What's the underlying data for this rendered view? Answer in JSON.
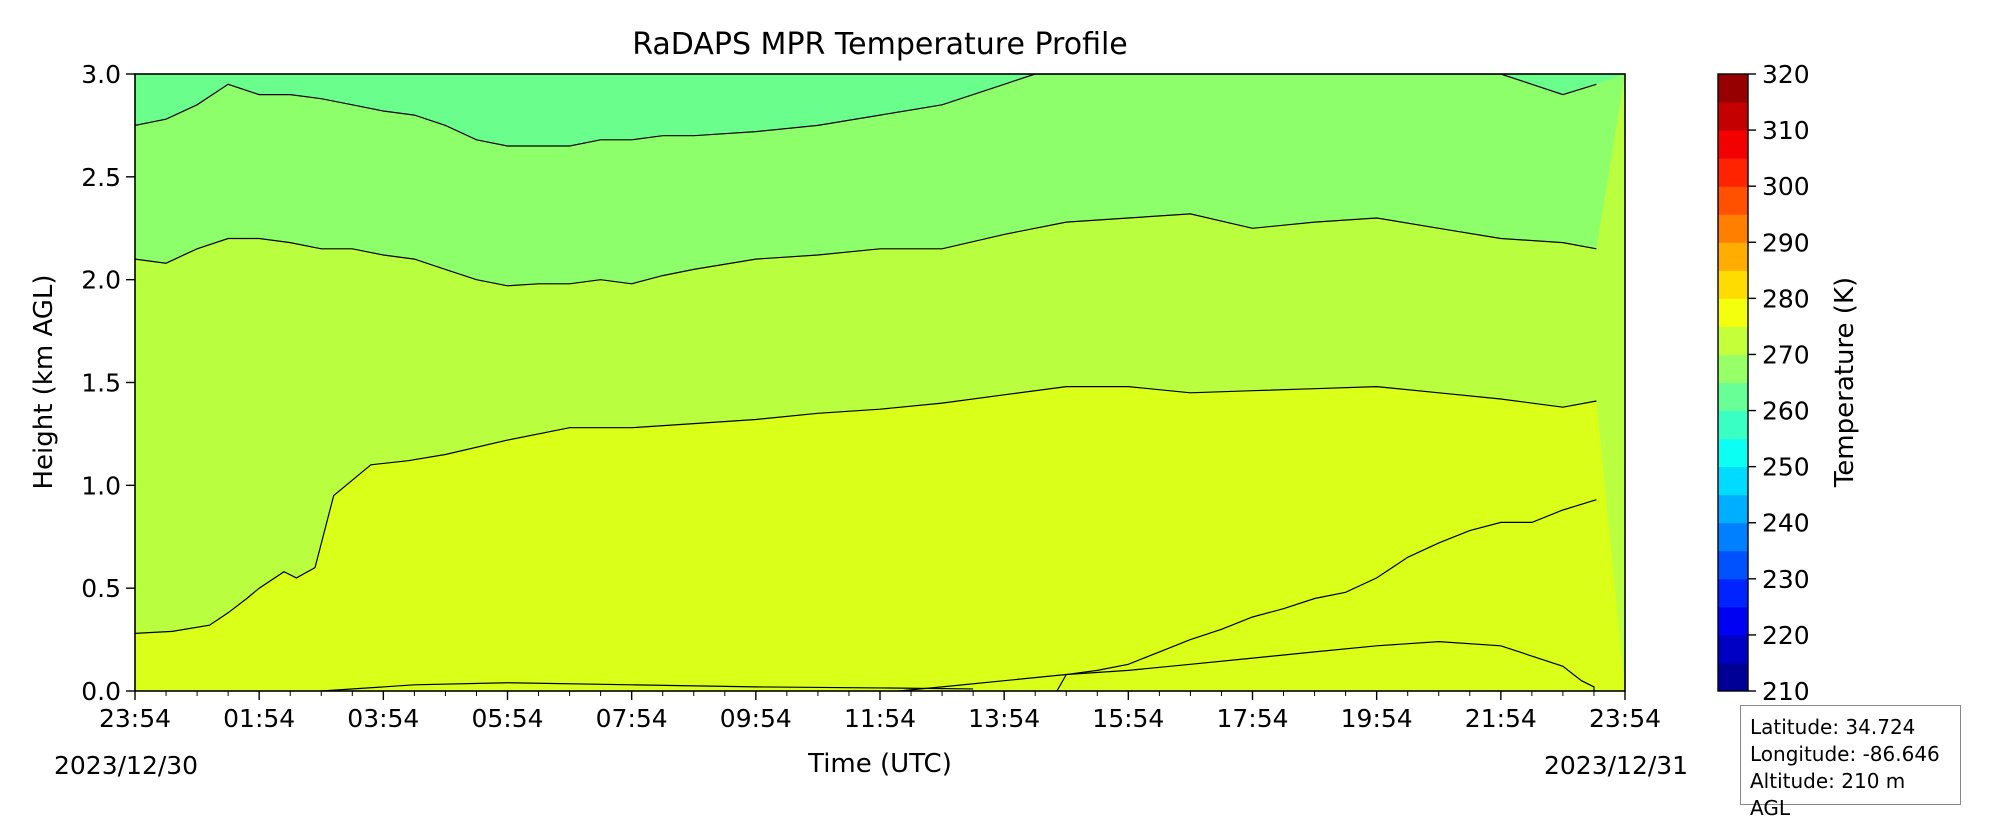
{
  "chart_data": {
    "type": "contourf",
    "title": "RaDAPS MPR Temperature Profile",
    "xlabel": "Time (UTC)",
    "ylabel": "Height (km AGL)",
    "x_ticks": [
      "23:54",
      "01:54",
      "03:54",
      "05:54",
      "07:54",
      "09:54",
      "11:54",
      "13:54",
      "15:54",
      "17:54",
      "19:54",
      "21:54",
      "23:54"
    ],
    "x_start_date": "2023/12/30",
    "x_end_date": "2023/12/31",
    "ylim": [
      0,
      3.0
    ],
    "y_ticks": [
      "0.0",
      "0.5",
      "1.0",
      "1.5",
      "2.0",
      "2.5",
      "3.0"
    ],
    "colorbar": {
      "label": "Temperature (K)",
      "range": [
        210,
        320
      ],
      "step": 5,
      "ticks": [
        "210",
        "220",
        "230",
        "240",
        "250",
        "260",
        "270",
        "280",
        "290",
        "300",
        "310",
        "320"
      ]
    },
    "contour_levels_K": [
      260,
      265,
      270,
      275,
      280,
      285
    ],
    "layers": [
      {
        "level": 285,
        "color": "#ffb000",
        "points": [
          [
            12.3,
            0
          ],
          [
            13.0,
            0.02
          ],
          [
            14.0,
            0.05
          ],
          [
            15.0,
            0.08
          ],
          [
            16.0,
            0.1
          ],
          [
            17.0,
            0.13
          ],
          [
            18.0,
            0.16
          ],
          [
            19.0,
            0.19
          ],
          [
            20.0,
            0.22
          ],
          [
            21.0,
            0.24
          ],
          [
            22.0,
            0.22
          ],
          [
            23.0,
            0.12
          ],
          [
            23.3,
            0.05
          ],
          [
            23.5,
            0.02
          ],
          [
            23.5,
            0
          ],
          [
            23.54,
            0
          ]
        ]
      },
      {
        "level": 280,
        "color": "#ffe100",
        "points": [
          [
            14.85,
            0
          ],
          [
            15.0,
            0.08
          ],
          [
            15.5,
            0.1
          ],
          [
            16.0,
            0.13
          ],
          [
            16.5,
            0.19
          ],
          [
            17.0,
            0.25
          ],
          [
            17.5,
            0.3
          ],
          [
            18.0,
            0.36
          ],
          [
            18.5,
            0.4
          ],
          [
            19.0,
            0.45
          ],
          [
            19.5,
            0.48
          ],
          [
            20.0,
            0.55
          ],
          [
            20.5,
            0.65
          ],
          [
            21.0,
            0.72
          ],
          [
            21.5,
            0.78
          ],
          [
            22.0,
            0.82
          ],
          [
            22.5,
            0.82
          ],
          [
            23.0,
            0.88
          ],
          [
            23.54,
            0.93
          ]
        ]
      },
      {
        "level": 275,
        "color": "#daff18",
        "points": [
          [
            0,
            0.28
          ],
          [
            0.6,
            0.29
          ],
          [
            1.2,
            0.32
          ],
          [
            1.5,
            0.38
          ],
          [
            1.8,
            0.45
          ],
          [
            2.0,
            0.5
          ],
          [
            2.4,
            0.58
          ],
          [
            2.6,
            0.55
          ],
          [
            2.9,
            0.6
          ],
          [
            3.2,
            0.95
          ],
          [
            3.4,
            1.0
          ],
          [
            3.8,
            1.1
          ],
          [
            4.4,
            1.12
          ],
          [
            5.0,
            1.15
          ],
          [
            6.0,
            1.22
          ],
          [
            7.0,
            1.28
          ],
          [
            8.0,
            1.28
          ],
          [
            9.0,
            1.3
          ],
          [
            10.0,
            1.32
          ],
          [
            11.0,
            1.35
          ],
          [
            12.0,
            1.37
          ],
          [
            13.0,
            1.4
          ],
          [
            14.0,
            1.44
          ],
          [
            15.0,
            1.48
          ],
          [
            16.0,
            1.48
          ],
          [
            17.0,
            1.45
          ],
          [
            18.0,
            1.46
          ],
          [
            19.0,
            1.47
          ],
          [
            20.0,
            1.48
          ],
          [
            21.0,
            1.45
          ],
          [
            22.0,
            1.42
          ],
          [
            23.0,
            1.38
          ],
          [
            23.54,
            1.41
          ]
        ]
      },
      {
        "level": 270,
        "color": "#b9ff3f",
        "points": [
          [
            0,
            2.1
          ],
          [
            0.5,
            2.08
          ],
          [
            1.0,
            2.15
          ],
          [
            1.5,
            2.2
          ],
          [
            2.0,
            2.2
          ],
          [
            2.5,
            2.18
          ],
          [
            3.0,
            2.15
          ],
          [
            3.5,
            2.15
          ],
          [
            4.0,
            2.12
          ],
          [
            4.5,
            2.1
          ],
          [
            5.0,
            2.05
          ],
          [
            5.5,
            2.0
          ],
          [
            6.0,
            1.97
          ],
          [
            6.5,
            1.98
          ],
          [
            7.0,
            1.98
          ],
          [
            7.5,
            2.0
          ],
          [
            8.0,
            1.98
          ],
          [
            8.5,
            2.02
          ],
          [
            9.0,
            2.05
          ],
          [
            10.0,
            2.1
          ],
          [
            11.0,
            2.12
          ],
          [
            12.0,
            2.15
          ],
          [
            13.0,
            2.15
          ],
          [
            14.0,
            2.22
          ],
          [
            15.0,
            2.28
          ],
          [
            16.0,
            2.3
          ],
          [
            17.0,
            2.32
          ],
          [
            18.0,
            2.25
          ],
          [
            19.0,
            2.28
          ],
          [
            20.0,
            2.3
          ],
          [
            21.0,
            2.25
          ],
          [
            22.0,
            2.2
          ],
          [
            23.0,
            2.18
          ],
          [
            23.54,
            2.15
          ]
        ]
      },
      {
        "level": 265,
        "color": "#8dff6a",
        "points": [
          [
            0,
            2.75
          ],
          [
            0.5,
            2.78
          ],
          [
            1.0,
            2.85
          ],
          [
            1.5,
            2.95
          ],
          [
            2.0,
            2.9
          ],
          [
            2.5,
            2.9
          ],
          [
            3.0,
            2.88
          ],
          [
            3.5,
            2.85
          ],
          [
            4.0,
            2.82
          ],
          [
            4.5,
            2.8
          ],
          [
            5.0,
            2.75
          ],
          [
            5.5,
            2.68
          ],
          [
            6.0,
            2.65
          ],
          [
            6.5,
            2.65
          ],
          [
            7.0,
            2.65
          ],
          [
            7.5,
            2.68
          ],
          [
            8.0,
            2.68
          ],
          [
            8.5,
            2.7
          ],
          [
            9.0,
            2.7
          ],
          [
            10.0,
            2.72
          ],
          [
            11.0,
            2.75
          ],
          [
            12.0,
            2.8
          ],
          [
            13.0,
            2.85
          ],
          [
            14.0,
            2.95
          ],
          [
            14.5,
            3.0
          ],
          [
            22.0,
            3.0
          ],
          [
            22.5,
            2.95
          ],
          [
            23.0,
            2.9
          ],
          [
            23.54,
            2.95
          ]
        ]
      },
      {
        "level": 260,
        "color": "#6aff8d",
        "points": []
      }
    ],
    "base_color": "#b9ff3f"
  },
  "info": {
    "latitude": "Latitude: 34.724",
    "longitude": "Longitude: -86.646",
    "altitude": "Altitude: 210 m AGL"
  }
}
